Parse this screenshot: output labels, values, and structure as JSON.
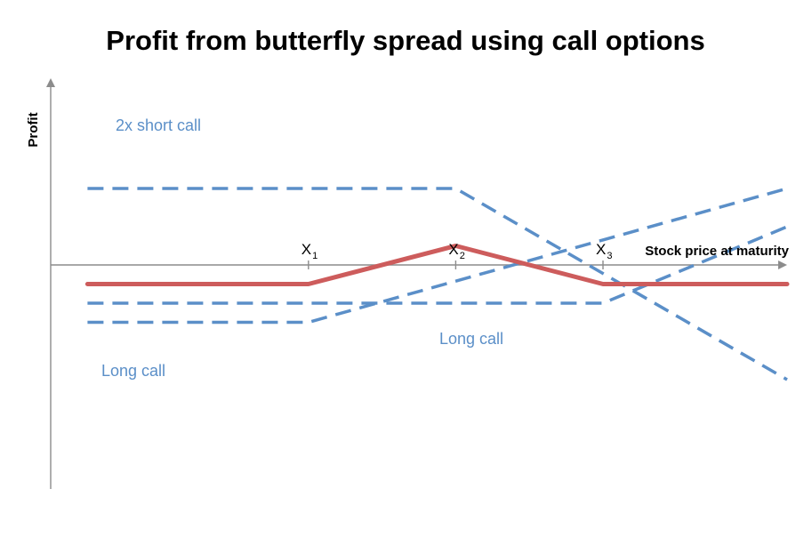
{
  "chart_data": {
    "type": "line",
    "title": "Profit from butterfly spread using call options",
    "xlabel": "Stock price at maturity",
    "ylabel": "Profit",
    "xlim": [
      0,
      100
    ],
    "ylim": [
      -10,
      10
    ],
    "grid": false,
    "legend": "none",
    "ticks": [
      {
        "label": "X",
        "sub": "1",
        "x": 35
      },
      {
        "label": "X",
        "sub": "2",
        "x": 55
      },
      {
        "label": "X",
        "sub": "3",
        "x": 75
      }
    ],
    "series": [
      {
        "name": "2x short call",
        "style": "dashed",
        "color": "#5b8fc8",
        "x": [
          5,
          55,
          100
        ],
        "y": [
          4,
          4,
          -6
        ]
      },
      {
        "name": "Long call",
        "style": "dashed",
        "color": "#5b8fc8",
        "x": [
          5,
          35,
          100
        ],
        "y": [
          -3,
          -3,
          4
        ]
      },
      {
        "name": "Long call",
        "style": "dashed",
        "color": "#5b8fc8",
        "x": [
          5,
          75,
          100
        ],
        "y": [
          -2,
          -2,
          2
        ]
      },
      {
        "name": "",
        "style": "solid",
        "color": "#cd5c5c",
        "x": [
          5,
          35,
          55,
          75,
          100
        ],
        "y": [
          -1,
          -1,
          1,
          -1,
          -1
        ]
      }
    ]
  }
}
